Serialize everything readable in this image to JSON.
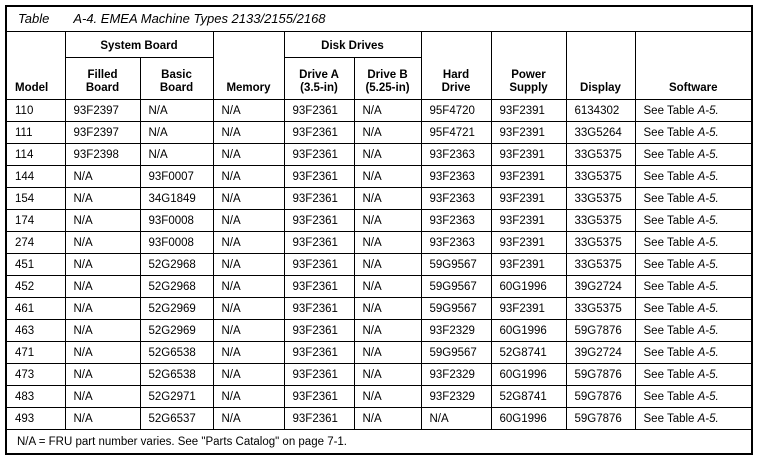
{
  "page": {
    "title_prefix": "Table",
    "title_text": "A-4. EMEA Machine Types 2133/2155/2168"
  },
  "table": {
    "group_headers": {
      "system_board": "System Board",
      "disk_drives": "Disk Drives"
    },
    "headers": {
      "model": "Model",
      "filled_board": "Filled\nBoard",
      "basic_board": "Basic\nBoard",
      "memory": "Memory",
      "drive_a": "Drive A\n(3.5-in)",
      "drive_b": "Drive B\n(5.25-in)",
      "hard_drive": "Hard\nDrive",
      "power_supply": "Power\nSupply",
      "display": "Display",
      "software": "Software"
    },
    "rows": [
      [
        "110",
        "93F2397",
        "N/A",
        "N/A",
        "93F2361",
        "N/A",
        "95F4720",
        "93F2391",
        "6134302",
        "See Table A-5."
      ],
      [
        "111",
        "93F2397",
        "N/A",
        "N/A",
        "93F2361",
        "N/A",
        "95F4721",
        "93F2391",
        "33G5264",
        "See Table A-5."
      ],
      [
        "114",
        "93F2398",
        "N/A",
        "N/A",
        "93F2361",
        "N/A",
        "93F2363",
        "93F2391",
        "33G5375",
        "See Table A-5."
      ],
      [
        "144",
        "N/A",
        "93F0007",
        "N/A",
        "93F2361",
        "N/A",
        "93F2363",
        "93F2391",
        "33G5375",
        "See Table A-5."
      ],
      [
        "154",
        "N/A",
        "34G1849",
        "N/A",
        "93F2361",
        "N/A",
        "93F2363",
        "93F2391",
        "33G5375",
        "See Table A-5."
      ],
      [
        "174",
        "N/A",
        "93F0008",
        "N/A",
        "93F2361",
        "N/A",
        "93F2363",
        "93F2391",
        "33G5375",
        "See Table A-5."
      ],
      [
        "274",
        "N/A",
        "93F0008",
        "N/A",
        "93F2361",
        "N/A",
        "93F2363",
        "93F2391",
        "33G5375",
        "See Table A-5."
      ],
      [
        "451",
        "N/A",
        "52G2968",
        "N/A",
        "93F2361",
        "N/A",
        "59G9567",
        "93F2391",
        "33G5375",
        "See Table A-5."
      ],
      [
        "452",
        "N/A",
        "52G2968",
        "N/A",
        "93F2361",
        "N/A",
        "59G9567",
        "60G1996",
        "39G2724",
        "See Table A-5."
      ],
      [
        "461",
        "N/A",
        "52G2969",
        "N/A",
        "93F2361",
        "N/A",
        "59G9567",
        "93F2391",
        "33G5375",
        "See Table A-5."
      ],
      [
        "463",
        "N/A",
        "52G2969",
        "N/A",
        "93F2361",
        "N/A",
        "93F2329",
        "60G1996",
        "59G7876",
        "See Table A-5."
      ],
      [
        "471",
        "N/A",
        "52G6538",
        "N/A",
        "93F2361",
        "N/A",
        "59G9567",
        "52G8741",
        "39G2724",
        "See Table A-5."
      ],
      [
        "473",
        "N/A",
        "52G6538",
        "N/A",
        "93F2361",
        "N/A",
        "93F2329",
        "60G1996",
        "59G7876",
        "See Table A-5."
      ],
      [
        "483",
        "N/A",
        "52G2971",
        "N/A",
        "93F2361",
        "N/A",
        "93F2329",
        "52G8741",
        "59G7876",
        "See Table A-5."
      ],
      [
        "493",
        "N/A",
        "52G6537",
        "N/A",
        "93F2361",
        "N/A",
        "N/A",
        "60G1996",
        "59G7876",
        "See Table A-5."
      ]
    ],
    "footnote": "N/A = FRU part number varies. See \"Parts Catalog\" on page 7-1."
  },
  "colors": {
    "text": "#000000",
    "border": "#000000",
    "background": "#ffffff"
  }
}
